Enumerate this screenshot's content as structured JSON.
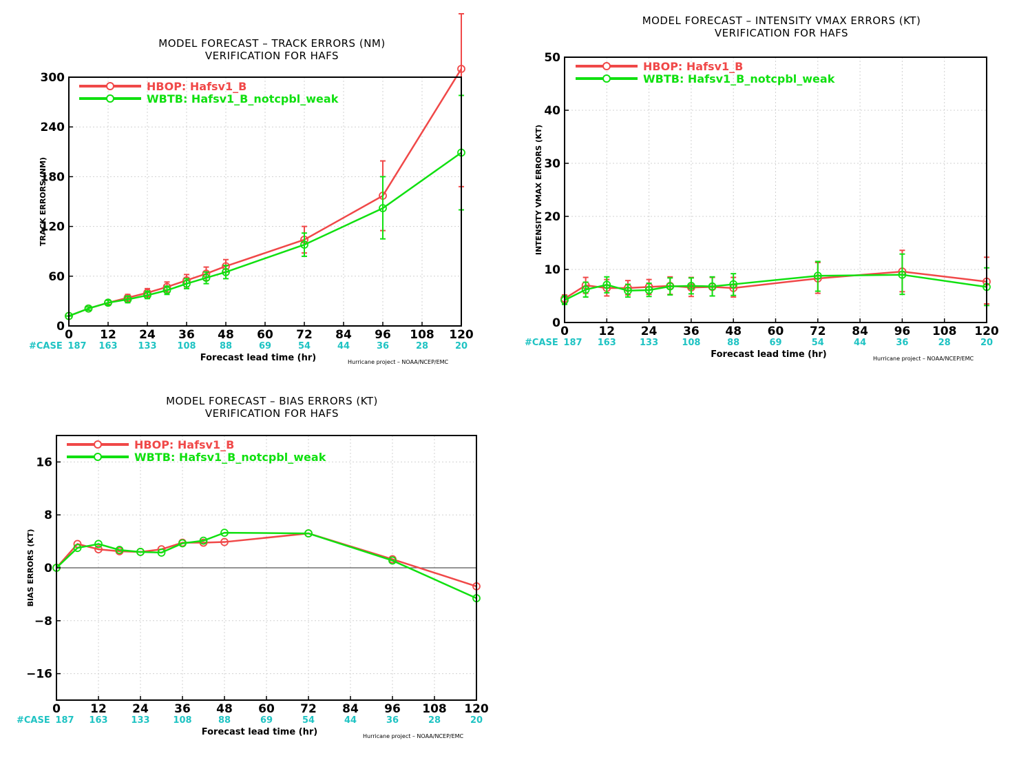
{
  "charts": [
    {
      "title_line1": "MODEL FORECAST – TRACK ERRORS (NM)",
      "title_line2": "VERIFICATION FOR HAFS",
      "ylabel": "TRACK ERRORS (NM)",
      "xlabel": "Forecast lead time (hr)",
      "credit": "Hurricane project – NOAA/NCEP/EMC",
      "case_label": "#CASE",
      "xtick_labels": [
        "0",
        "12",
        "24",
        "36",
        "48",
        "60",
        "72",
        "84",
        "96",
        "108",
        "120"
      ],
      "ytick_labels": [
        "0",
        "60",
        "120",
        "180",
        "240",
        "300"
      ],
      "legend": [
        "HBOP:  Hafsv1_B",
        "WBTB:  Hafsv1_B_notcpbl_weak"
      ],
      "case_counts": [
        "187",
        "163",
        "133",
        "108",
        "88",
        "69",
        "54",
        "44",
        "36",
        "28",
        "20"
      ]
    },
    {
      "title_line1": "MODEL FORECAST – INTENSITY VMAX ERRORS (KT)",
      "title_line2": "VERIFICATION FOR HAFS",
      "ylabel": "INTENSITY VMAX ERRORS (KT)",
      "xlabel": "Forecast lead time (hr)",
      "credit": "Hurricane project – NOAA/NCEP/EMC",
      "case_label": "#CASE",
      "xtick_labels": [
        "0",
        "12",
        "24",
        "36",
        "48",
        "60",
        "72",
        "84",
        "96",
        "108",
        "120"
      ],
      "ytick_labels": [
        "0",
        "10",
        "20",
        "30",
        "40",
        "50"
      ],
      "legend": [
        "HBOP:  Hafsv1_B",
        "WBTB:  Hafsv1_B_notcpbl_weak"
      ],
      "case_counts": [
        "187",
        "163",
        "133",
        "108",
        "88",
        "69",
        "54",
        "44",
        "36",
        "28",
        "20"
      ]
    },
    {
      "title_line1": "MODEL FORECAST – BIAS ERRORS (KT)",
      "title_line2": "VERIFICATION FOR HAFS",
      "ylabel": "BIAS ERRORS (KT)",
      "xlabel": "Forecast lead time (hr)",
      "credit": "Hurricane project – NOAA/NCEP/EMC",
      "case_label": "#CASE",
      "xtick_labels": [
        "0",
        "12",
        "24",
        "36",
        "48",
        "60",
        "72",
        "84",
        "96",
        "108",
        "120"
      ],
      "ytick_labels": [
        "−16",
        "−8",
        "0",
        "8",
        "16"
      ],
      "legend": [
        "HBOP:  Hafsv1_B",
        "WBTB:  Hafsv1_B_notcpbl_weak"
      ],
      "case_counts": [
        "187",
        "163",
        "133",
        "108",
        "88",
        "69",
        "54",
        "44",
        "36",
        "28",
        "20"
      ]
    }
  ],
  "chart_data": [
    {
      "type": "line",
      "title": "MODEL FORECAST – TRACK ERRORS (NM) / VERIFICATION FOR HAFS",
      "xlabel": "Forecast lead time (hr)",
      "ylabel": "TRACK ERRORS (NM)",
      "xlim": [
        0,
        120
      ],
      "ylim": [
        0,
        300
      ],
      "xticks": [
        0,
        12,
        24,
        36,
        48,
        60,
        72,
        84,
        96,
        108,
        120
      ],
      "yticks": [
        0,
        60,
        120,
        180,
        240,
        300
      ],
      "grid": true,
      "legend_position": "top-left",
      "case_counts": [
        187,
        163,
        133,
        108,
        88,
        69,
        54,
        44,
        36,
        28,
        20
      ],
      "series": [
        {
          "name": "HBOP:  Hafsv1_B",
          "color": "#f04848",
          "x": [
            0,
            6,
            12,
            18,
            24,
            30,
            36,
            42,
            48,
            72,
            96,
            120
          ],
          "y": [
            12,
            21,
            28,
            34,
            40,
            47,
            55,
            63,
            72,
            104,
            157,
            310
          ],
          "err_low": [
            12,
            19,
            26,
            29,
            35,
            41,
            47,
            55,
            65,
            88,
            115,
            168
          ],
          "err_high": [
            12,
            23,
            31,
            38,
            45,
            53,
            62,
            71,
            80,
            120,
            199,
            380
          ]
        },
        {
          "name": "WBTB:  Hafsv1_B_notcpbl_weak",
          "color": "#10e010",
          "x": [
            0,
            6,
            12,
            18,
            24,
            30,
            36,
            42,
            48,
            72,
            96,
            120
          ],
          "y": [
            12,
            21,
            28,
            32,
            37,
            43,
            51,
            58,
            65,
            98,
            142,
            209
          ],
          "err_low": [
            12,
            19,
            25,
            28,
            33,
            38,
            45,
            51,
            57,
            84,
            105,
            140
          ],
          "err_high": [
            12,
            23,
            31,
            36,
            42,
            48,
            57,
            65,
            73,
            112,
            180,
            278
          ]
        }
      ]
    },
    {
      "type": "line",
      "title": "MODEL FORECAST – INTENSITY VMAX ERRORS (KT) / VERIFICATION FOR HAFS",
      "xlabel": "Forecast lead time (hr)",
      "ylabel": "INTENSITY VMAX ERRORS (KT)",
      "xlim": [
        0,
        120
      ],
      "ylim": [
        0,
        50
      ],
      "xticks": [
        0,
        12,
        24,
        36,
        48,
        60,
        72,
        84,
        96,
        108,
        120
      ],
      "yticks": [
        0,
        10,
        20,
        30,
        40,
        50
      ],
      "grid": true,
      "legend_position": "top-left",
      "case_counts": [
        187,
        163,
        133,
        108,
        88,
        69,
        54,
        44,
        36,
        28,
        20
      ],
      "series": [
        {
          "name": "HBOP:  Hafsv1_B",
          "color": "#f04848",
          "x": [
            0,
            6,
            12,
            18,
            24,
            30,
            36,
            42,
            48,
            72,
            96,
            120
          ],
          "y": [
            4.5,
            7.0,
            6.5,
            6.5,
            6.7,
            6.9,
            6.6,
            6.7,
            6.5,
            8.3,
            9.6,
            7.7
          ],
          "err_low": [
            3.6,
            5.5,
            5.0,
            5.2,
            5.3,
            5.3,
            4.9,
            5.0,
            4.8,
            5.5,
            5.8,
            3.5
          ],
          "err_high": [
            5.2,
            8.5,
            8.1,
            7.9,
            8.1,
            8.6,
            8.5,
            8.5,
            8.5,
            11.3,
            13.6,
            12.3
          ]
        },
        {
          "name": "WBTB:  Hafsv1_B_notcpbl_weak",
          "color": "#10e010",
          "x": [
            0,
            6,
            12,
            18,
            24,
            30,
            36,
            42,
            48,
            72,
            96,
            120
          ],
          "y": [
            4.2,
            6.2,
            7.1,
            6.0,
            6.1,
            6.8,
            6.9,
            6.8,
            7.2,
            8.8,
            9.0,
            6.7
          ],
          "err_low": [
            3.4,
            4.8,
            5.6,
            4.8,
            4.9,
            5.2,
            5.4,
            5.0,
            5.1,
            5.9,
            5.3,
            3.2
          ],
          "err_high": [
            5.0,
            7.6,
            8.6,
            7.2,
            7.4,
            8.4,
            8.4,
            8.6,
            9.2,
            11.5,
            12.9,
            10.3
          ]
        }
      ]
    },
    {
      "type": "line",
      "title": "MODEL FORECAST – BIAS ERRORS (KT) / VERIFICATION FOR HAFS",
      "xlabel": "Forecast lead time (hr)",
      "ylabel": "BIAS ERRORS (KT)",
      "xlim": [
        0,
        120
      ],
      "ylim": [
        -20,
        20
      ],
      "xticks": [
        0,
        12,
        24,
        36,
        48,
        60,
        72,
        84,
        96,
        108,
        120
      ],
      "yticks": [
        -16,
        -8,
        0,
        8,
        16
      ],
      "grid": true,
      "zero_line": true,
      "legend_position": "top-left",
      "case_counts": [
        187,
        163,
        133,
        108,
        88,
        69,
        54,
        44,
        36,
        28,
        20
      ],
      "series": [
        {
          "name": "HBOP:  Hafsv1_B",
          "color": "#f04848",
          "x": [
            0,
            6,
            12,
            18,
            24,
            30,
            36,
            42,
            48,
            72,
            96,
            120
          ],
          "y": [
            0,
            3.6,
            2.8,
            2.5,
            2.4,
            2.8,
            3.8,
            3.8,
            3.9,
            5.2,
            1.3,
            -2.8
          ]
        },
        {
          "name": "WBTB:  Hafsv1_B_notcpbl_weak",
          "color": "#10e010",
          "x": [
            0,
            6,
            12,
            18,
            24,
            30,
            36,
            42,
            48,
            72,
            96,
            120
          ],
          "y": [
            0,
            3.0,
            3.6,
            2.7,
            2.4,
            2.3,
            3.7,
            4.1,
            5.3,
            5.2,
            1.1,
            -4.6
          ]
        }
      ]
    }
  ]
}
